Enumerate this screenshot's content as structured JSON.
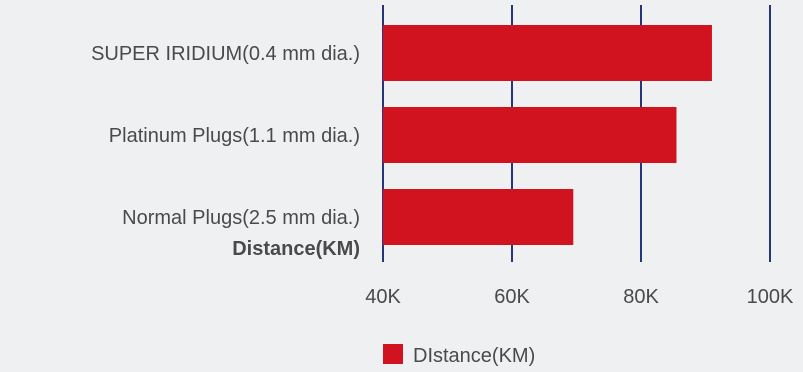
{
  "chart_data": {
    "type": "bar",
    "orientation": "horizontal",
    "categories": [
      "SUPER IRIDIUM(0.4 mm dia.)",
      "Platinum Plugs(1.1 mm dia.)",
      "Normal Plugs(2.5 mm dia.)"
    ],
    "series": [
      {
        "name": "DIstance(KM)",
        "values": [
          91000,
          85500,
          69500
        ]
      }
    ],
    "ylabel": "Distance(KM)",
    "xlim": [
      40000,
      100000
    ],
    "x_ticks": [
      40000,
      60000,
      80000,
      100000
    ],
    "x_tick_labels": [
      "40K",
      "60K",
      "80K",
      "100K"
    ],
    "grid": true,
    "legend_position": "bottom-center",
    "colors": {
      "bar": "#d0131f",
      "grid": "#27357a",
      "background": "#eef0f2"
    }
  }
}
